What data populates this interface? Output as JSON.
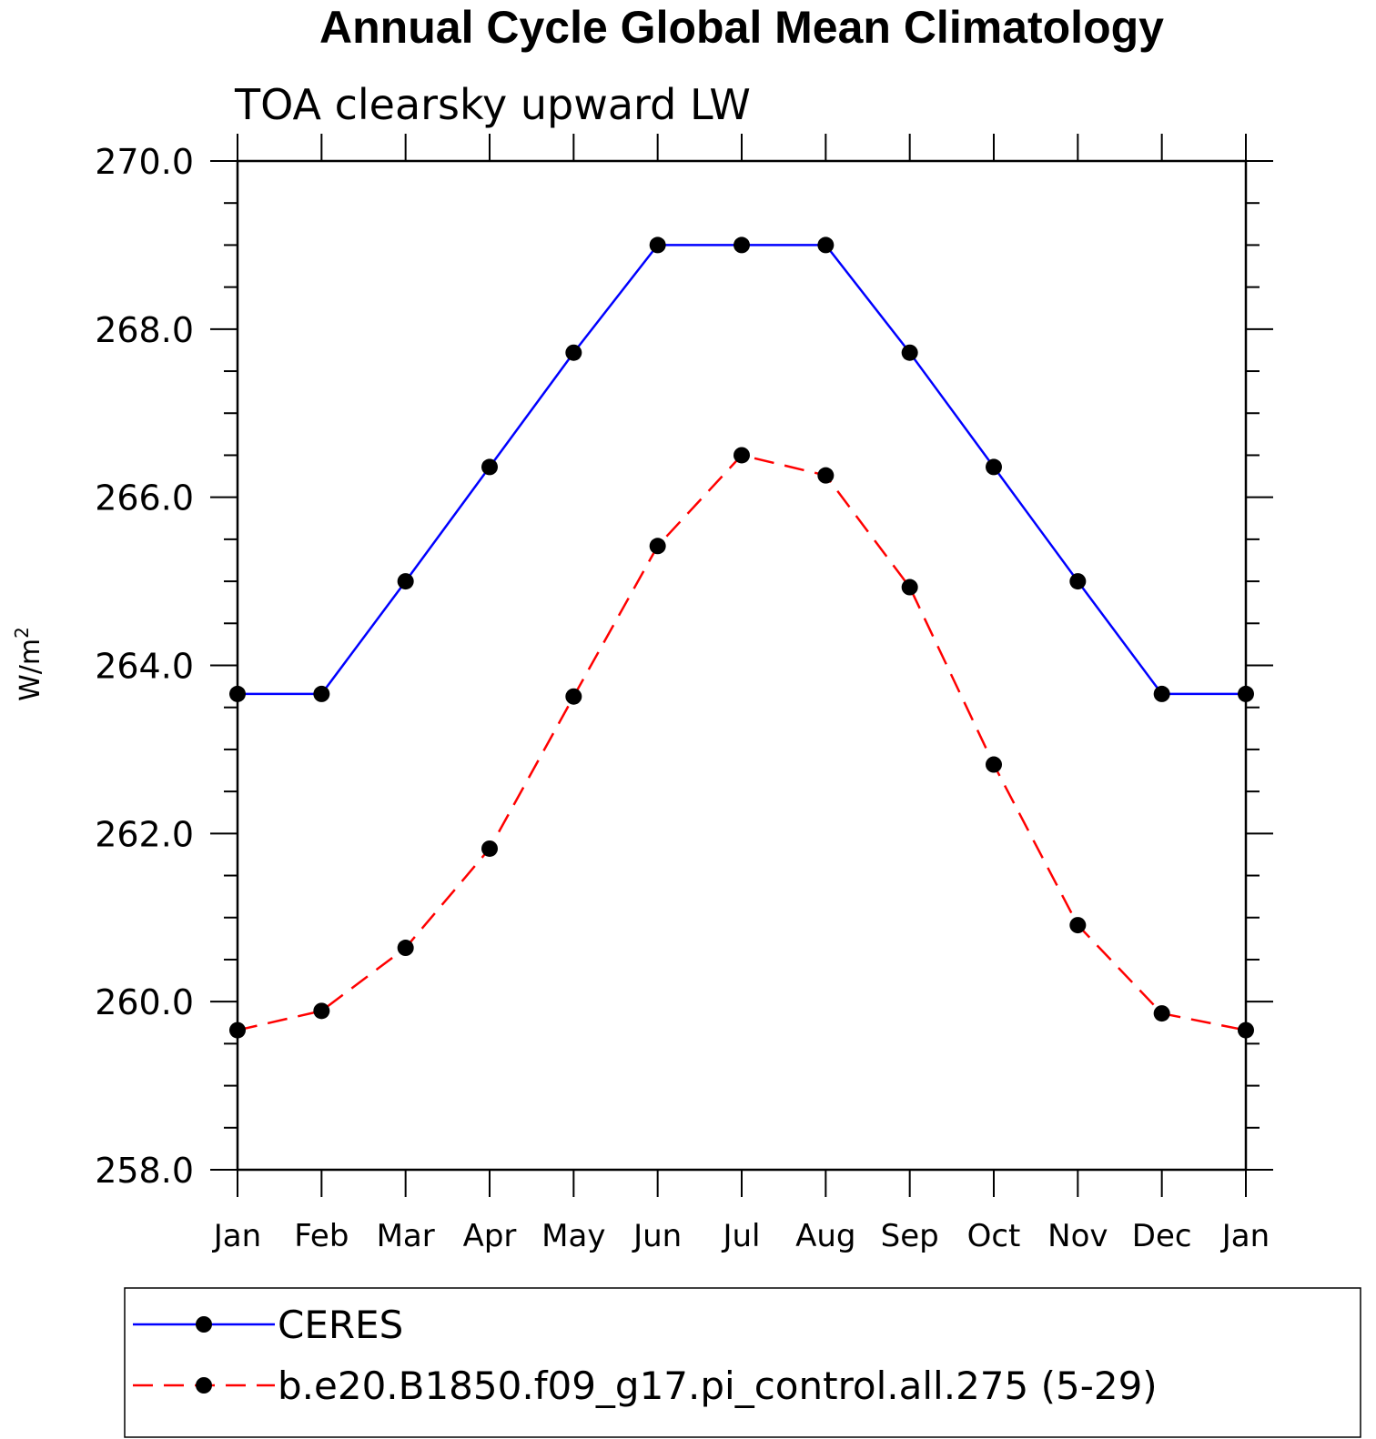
{
  "chart_data": {
    "type": "line",
    "title": "Annual Cycle Global Mean Climatology",
    "subtitle": "TOA clearsky upward LW",
    "ylabel": "W/m",
    "ylabel_superscript": "2",
    "xlabel": "",
    "categories": [
      "Jan",
      "Feb",
      "Mar",
      "Apr",
      "May",
      "Jun",
      "Jul",
      "Aug",
      "Sep",
      "Oct",
      "Nov",
      "Dec",
      "Jan"
    ],
    "ylim": [
      258.0,
      270.0
    ],
    "yticks": [
      "258.0",
      "260.0",
      "262.0",
      "264.0",
      "266.0",
      "268.0",
      "270.0"
    ],
    "y_minor_step": 0.5,
    "grid": false,
    "legend_placement": "bottom",
    "series": [
      {
        "name": "CERES",
        "color": "#0000ff",
        "dash": "solid",
        "marker": "circle",
        "values": [
          263.66,
          263.66,
          265.0,
          266.36,
          267.72,
          269.0,
          269.0,
          269.0,
          267.72,
          266.36,
          265.0,
          263.66,
          263.66
        ]
      },
      {
        "name": "b.e20.B1850.f09_g17.pi_control.all.275 (5-29)",
        "color": "#ff0000",
        "dash": "dashed",
        "marker": "circle",
        "values": [
          259.66,
          259.89,
          260.64,
          261.82,
          263.63,
          265.42,
          266.5,
          266.26,
          264.93,
          262.82,
          260.91,
          259.86,
          259.66
        ]
      }
    ]
  }
}
